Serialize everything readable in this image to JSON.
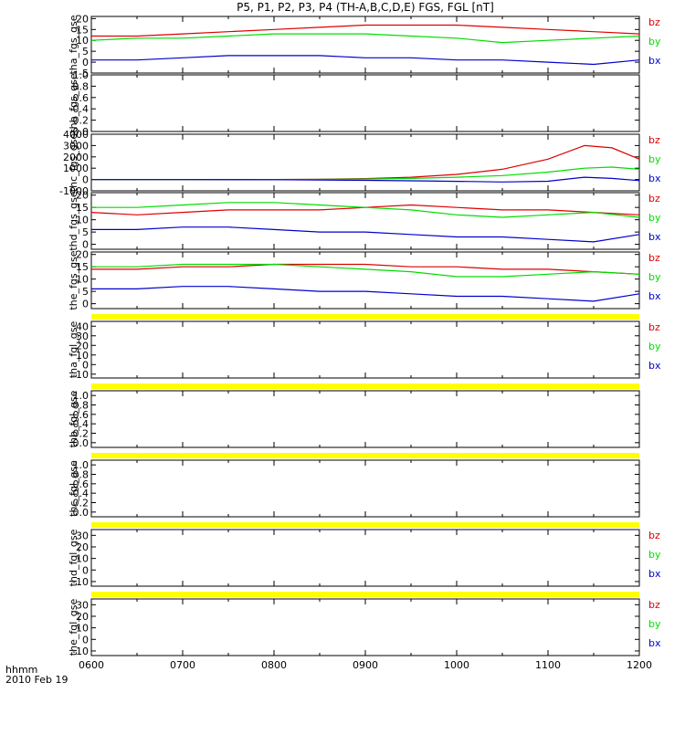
{
  "title": "P5, P1, P2, P3, P4 (TH-A,B,C,D,E) FGS, FGL [nT]",
  "footer": {
    "time_label": "hhmm",
    "date_label": "2010 Feb 19"
  },
  "x_ticks": [
    "0600",
    "0700",
    "0800",
    "0900",
    "1000",
    "1100",
    "1200"
  ],
  "colors": {
    "bx": "#0000cc",
    "by": "#00dd00",
    "bz": "#dd0000",
    "flag": "#ffff00"
  },
  "chart_data": [
    {
      "type": "line",
      "ylabel": "tha_fgs_gse",
      "ylim": [
        -5,
        21
      ],
      "yticks": [
        "20",
        "15",
        "10",
        "5",
        "0",
        "-5"
      ],
      "legend": [
        "bz",
        "by",
        "bx"
      ],
      "has_data": true,
      "flag_bar": false,
      "x_hours": [
        6,
        6.5,
        7,
        7.5,
        8,
        8.5,
        9,
        9.5,
        10,
        10.5,
        11,
        11.5,
        12
      ],
      "series": [
        {
          "name": "bz",
          "values": [
            12,
            12,
            13,
            14,
            15,
            16,
            17,
            17,
            17,
            16,
            15,
            14,
            13
          ]
        },
        {
          "name": "by",
          "values": [
            10,
            11,
            11,
            12,
            13,
            13,
            13,
            12,
            11,
            9,
            10,
            11,
            12
          ]
        },
        {
          "name": "bx",
          "values": [
            1,
            1,
            2,
            3,
            3,
            3,
            2,
            2,
            1,
            1,
            0,
            -1,
            1
          ]
        }
      ]
    },
    {
      "type": "line",
      "ylabel": "thb_fgs_gse",
      "ylim": [
        0,
        1
      ],
      "yticks": [
        "1.0",
        "0.8",
        "0.6",
        "0.4",
        "0.2",
        "0.0"
      ],
      "legend": [],
      "has_data": false,
      "flag_bar": false
    },
    {
      "type": "line",
      "ylabel": "thc_fgs_gse",
      "ylim": [
        -1000,
        4000
      ],
      "yticks": [
        "4000",
        "3000",
        "2000",
        "1000",
        "0",
        "-1000"
      ],
      "legend": [
        "bz",
        "by",
        "bx"
      ],
      "has_data": true,
      "flag_bar": false,
      "x_hours": [
        6,
        7,
        8,
        8.5,
        9,
        9.5,
        10,
        10.5,
        11,
        11.4,
        11.7,
        12
      ],
      "series": [
        {
          "name": "bz",
          "values": [
            0,
            0,
            0,
            20,
            80,
            200,
            450,
            900,
            1800,
            3000,
            2800,
            1800
          ]
        },
        {
          "name": "by",
          "values": [
            0,
            0,
            0,
            10,
            40,
            100,
            200,
            350,
            650,
            1000,
            1100,
            900
          ]
        },
        {
          "name": "bx",
          "values": [
            -5,
            -10,
            -20,
            -40,
            -70,
            -110,
            -160,
            -220,
            -150,
            200,
            100,
            -100
          ]
        }
      ]
    },
    {
      "type": "line",
      "ylabel": "thd_fgs_gse",
      "ylim": [
        -2,
        21
      ],
      "yticks": [
        "20",
        "15",
        "10",
        "5",
        "0"
      ],
      "legend": [
        "bz",
        "by",
        "bx"
      ],
      "has_data": true,
      "flag_bar": false,
      "x_hours": [
        6,
        6.5,
        7,
        7.5,
        8,
        8.5,
        9,
        9.5,
        10,
        10.5,
        11,
        11.5,
        12
      ],
      "series": [
        {
          "name": "bz",
          "values": [
            13,
            12,
            13,
            14,
            14,
            14,
            15,
            16,
            15,
            14,
            14,
            13,
            12
          ]
        },
        {
          "name": "by",
          "values": [
            15,
            15,
            16,
            17,
            17,
            16,
            15,
            14,
            12,
            11,
            12,
            13,
            11
          ]
        },
        {
          "name": "bx",
          "values": [
            6,
            6,
            7,
            7,
            6,
            5,
            5,
            4,
            3,
            3,
            2,
            1,
            4
          ]
        }
      ]
    },
    {
      "type": "line",
      "ylabel": "the_fgs_gse",
      "ylim": [
        -2,
        21
      ],
      "yticks": [
        "20",
        "15",
        "10",
        "5",
        "0"
      ],
      "legend": [
        "bz",
        "by",
        "bx"
      ],
      "has_data": true,
      "flag_bar": false,
      "x_hours": [
        6,
        6.5,
        7,
        7.5,
        8,
        8.5,
        9,
        9.5,
        10,
        10.5,
        11,
        11.5,
        12
      ],
      "series": [
        {
          "name": "bz",
          "values": [
            14,
            14,
            15,
            15,
            16,
            16,
            16,
            15,
            15,
            14,
            14,
            13,
            12
          ]
        },
        {
          "name": "by",
          "values": [
            15,
            15,
            16,
            16,
            16,
            15,
            14,
            13,
            11,
            11,
            12,
            13,
            12
          ]
        },
        {
          "name": "bx",
          "values": [
            6,
            6,
            7,
            7,
            6,
            5,
            5,
            4,
            3,
            3,
            2,
            1,
            4
          ]
        }
      ]
    },
    {
      "type": "line",
      "ylabel": "tha_fgl_gse",
      "ylim": [
        -14,
        45
      ],
      "yticks": [
        "40",
        "30",
        "20",
        "10",
        "0",
        "-10"
      ],
      "legend": [
        "bz",
        "by",
        "bx"
      ],
      "has_data": false,
      "flag_bar": true
    },
    {
      "type": "line",
      "ylabel": "thb_fgl_gse",
      "ylim": [
        -0.1,
        1.1
      ],
      "yticks": [
        "1.0",
        "0.8",
        "0.6",
        "0.4",
        "0.2",
        "0.0"
      ],
      "legend": [],
      "has_data": false,
      "flag_bar": true
    },
    {
      "type": "line",
      "ylabel": "thc_fgl_gse",
      "ylim": [
        -0.1,
        1.1
      ],
      "yticks": [
        "1.0",
        "0.8",
        "0.6",
        "0.4",
        "0.2",
        "0.0"
      ],
      "legend": [],
      "has_data": false,
      "flag_bar": true
    },
    {
      "type": "line",
      "ylabel": "thd_fgl_gse",
      "ylim": [
        -14,
        35
      ],
      "yticks": [
        "30",
        "20",
        "10",
        "0",
        "-10"
      ],
      "legend": [
        "bz",
        "by",
        "bx"
      ],
      "has_data": false,
      "flag_bar": true
    },
    {
      "type": "line",
      "ylabel": "the_fgl_gse",
      "ylim": [
        -14,
        35
      ],
      "yticks": [
        "30",
        "20",
        "10",
        "0",
        "-10"
      ],
      "legend": [
        "bz",
        "by",
        "bx"
      ],
      "has_data": false,
      "flag_bar": true
    }
  ]
}
